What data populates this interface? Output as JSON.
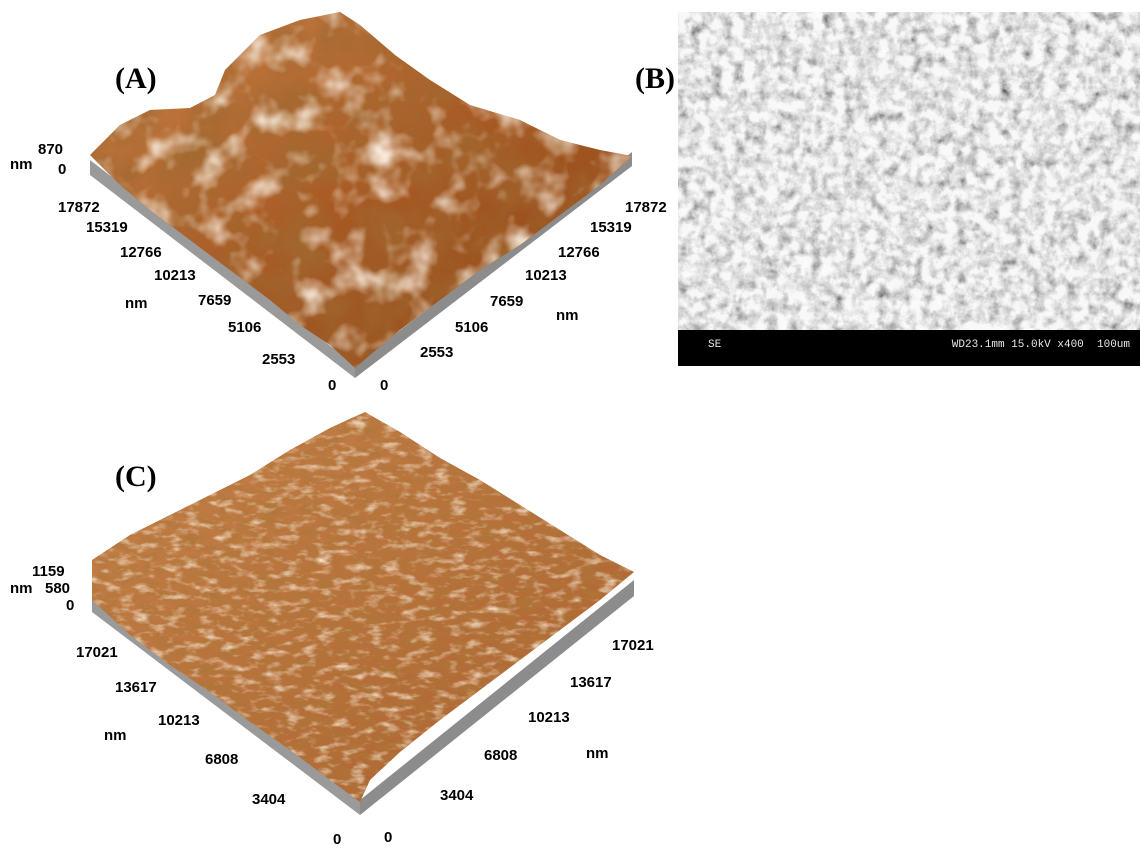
{
  "panels": {
    "A": {
      "label": "(A)",
      "z_unit": "nm",
      "z_ticks": [
        "870",
        "0"
      ],
      "left_axis_unit": "nm",
      "left_axis_ticks": [
        "17872",
        "15319",
        "12766",
        "10213",
        "7659",
        "5106",
        "2553",
        "0"
      ],
      "right_axis_unit": "nm",
      "right_axis_ticks": [
        "17872",
        "15319",
        "12766",
        "10213",
        "7659",
        "5106",
        "2553",
        "0"
      ]
    },
    "B": {
      "label": "(B)",
      "info_left": "SE",
      "info_right": "WD23.1mm 15.0kV x400  100um"
    },
    "C": {
      "label": "(C)",
      "z_unit": "nm",
      "z_ticks": [
        "1159",
        "580",
        "0"
      ],
      "left_axis_unit": "nm",
      "left_axis_ticks": [
        "17021",
        "13617",
        "10213",
        "6808",
        "3404",
        "0"
      ],
      "right_axis_unit": "nm",
      "right_axis_ticks": [
        "17021",
        "13617",
        "10213",
        "6808",
        "3404",
        "0"
      ]
    }
  },
  "colors": {
    "afm_dark": "#5a2408",
    "afm_mid": "#b86a30",
    "afm_light": "#f4dcc0",
    "base_gray": "#9a9a9a",
    "sem_gray": "#bdbdbd"
  }
}
